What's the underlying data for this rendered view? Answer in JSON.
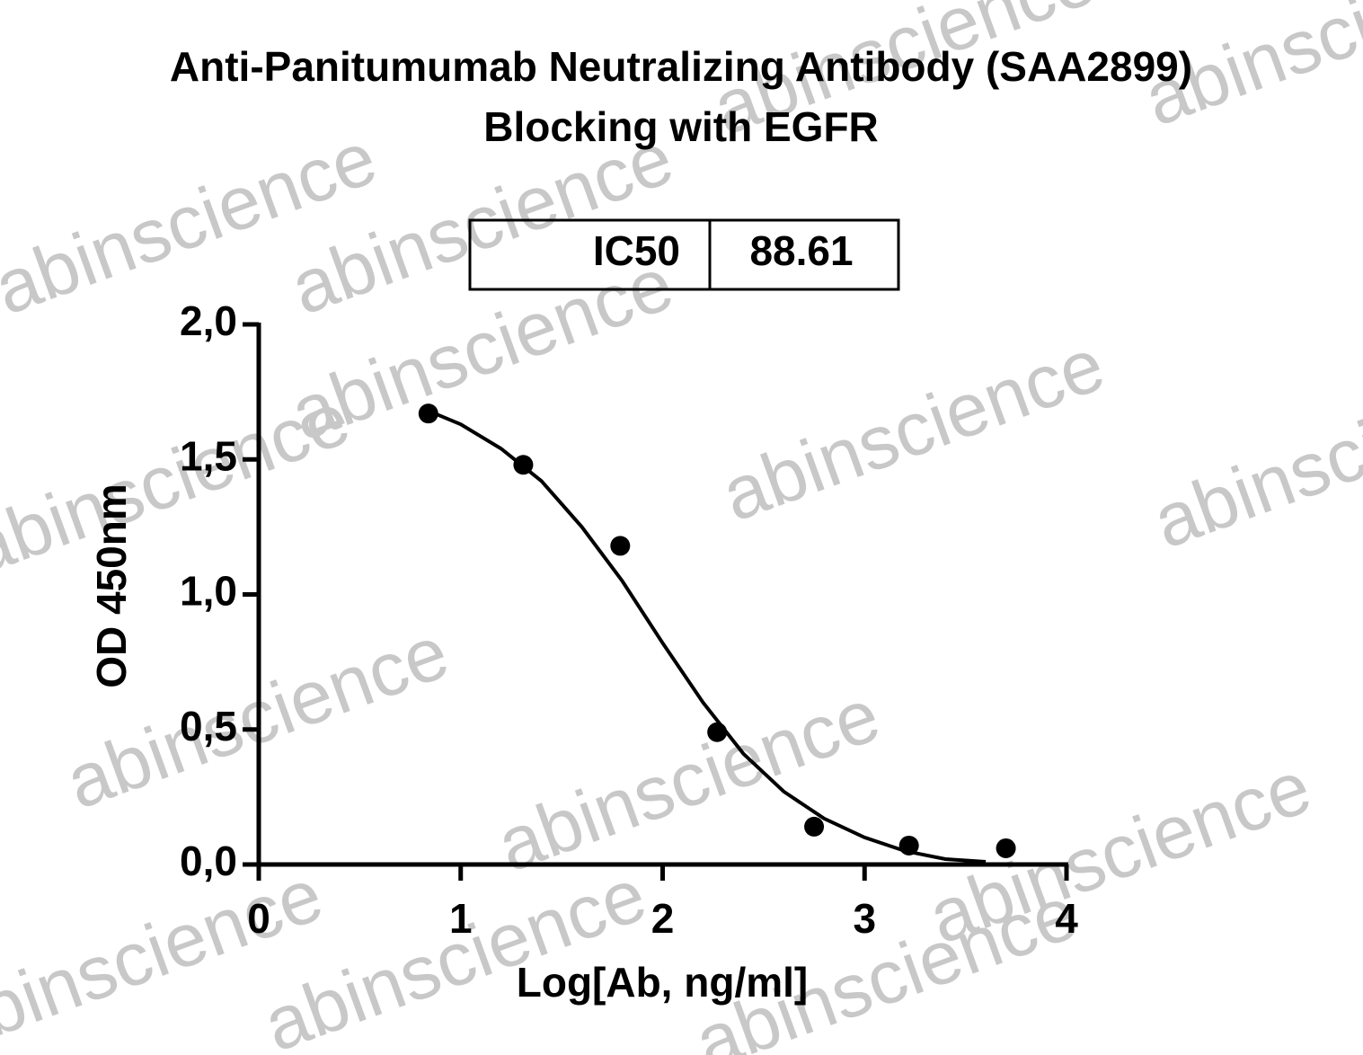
{
  "chart_data": {
    "type": "scatter",
    "title": [
      "Anti-Panitumumab Neutralizing Antibody (SAA2899)",
      "Blocking with EGFR"
    ],
    "watermark": "abinscience",
    "annotation": {
      "label": "IC50",
      "value": "88.61"
    },
    "x_label": "Log[Ab, ng/ml]",
    "y_label": "OD 450nm",
    "xlim": [
      0,
      4
    ],
    "xticks": [
      0,
      1,
      2,
      3,
      4
    ],
    "ylim": [
      0,
      2
    ],
    "yticks": [
      {
        "value": 0,
        "label": "0,0"
      },
      {
        "value": 0.5,
        "label": "0,5"
      },
      {
        "value": 1,
        "label": "1,0"
      },
      {
        "value": 1.5,
        "label": "1,5"
      },
      {
        "value": 2,
        "label": "2,0"
      }
    ],
    "series": [
      {
        "type": "scatter",
        "color": "#000000",
        "x": [
          0.84,
          1.31,
          1.79,
          2.27,
          2.75,
          3.22,
          3.7
        ],
        "values": [
          1.67,
          1.48,
          1.18,
          0.49,
          0.14,
          0.07,
          0.06
        ]
      },
      {
        "type": "line",
        "color": "#000000",
        "x": [
          0.84,
          1.0,
          1.2,
          1.4,
          1.6,
          1.8,
          2.0,
          2.2,
          2.4,
          2.6,
          2.8,
          3.0,
          3.2,
          3.4,
          3.6
        ],
        "values": [
          1.68,
          1.63,
          1.54,
          1.42,
          1.25,
          1.05,
          0.82,
          0.6,
          0.41,
          0.27,
          0.17,
          0.1,
          0.05,
          0.02,
          0.01
        ]
      }
    ]
  }
}
